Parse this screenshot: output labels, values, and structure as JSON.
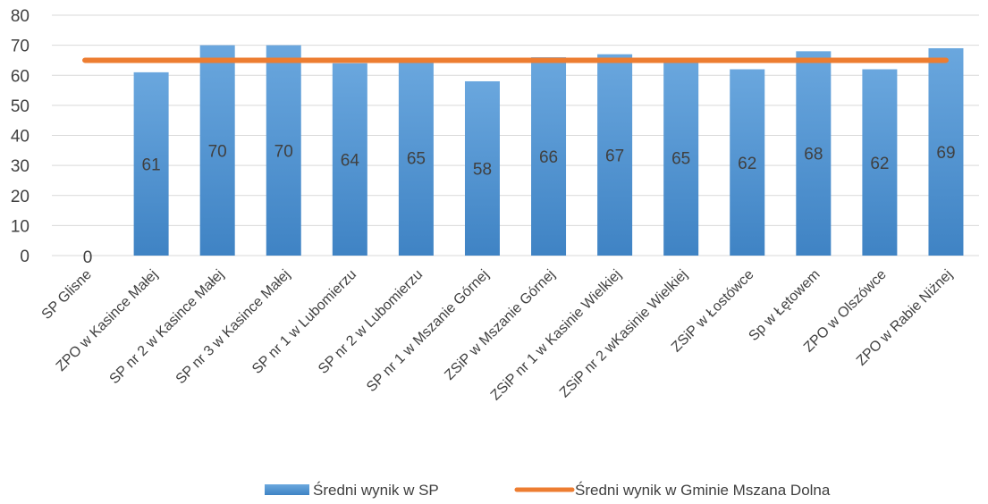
{
  "chart_data": {
    "type": "bar",
    "categories": [
      "SP Glisne",
      "ZPO w Kasince Małej",
      "SP nr 2 w Kasince Małej",
      "SP nr 3 w Kasince Małej",
      "SP nr 1 w Lubomierzu",
      "SP nr 2 w Lubomierzu",
      "SP nr 1 w Mszanie Górnej",
      "ZSiP  w Mszanie Górnej",
      "ZSiP nr 1 w Kasinie Wielkiej",
      "ZSiP nr 2  wKasinie Wielkiej",
      "ZSiP w Łostówce",
      "Sp w Łętowem",
      "ZPO w Olszówce",
      "ZPO w Rabie Niżnej"
    ],
    "series": [
      {
        "name": "Średni wynik w SP",
        "kind": "bar",
        "color": "#5b9bd5",
        "values": [
          0,
          61,
          70,
          70,
          64,
          65,
          58,
          66,
          67,
          65,
          62,
          68,
          62,
          69
        ],
        "data_labels": [
          "0",
          "61",
          "70",
          "70",
          "64",
          "65",
          "58",
          "66",
          "67",
          "65",
          "62",
          "68",
          "62",
          "69"
        ]
      },
      {
        "name": "Średni wynik w Gminie Mszana Dolna",
        "kind": "line",
        "color": "#ed7d31",
        "values": [
          65,
          65,
          65,
          65,
          65,
          65,
          65,
          65,
          65,
          65,
          65,
          65,
          65,
          65
        ]
      }
    ],
    "title": "",
    "xlabel": "",
    "ylabel": "",
    "ylim": [
      0,
      80
    ],
    "yticks": [
      "0",
      "10",
      "20",
      "30",
      "40",
      "50",
      "60",
      "70",
      "80"
    ],
    "grid": true,
    "legend_position": "bottom"
  }
}
